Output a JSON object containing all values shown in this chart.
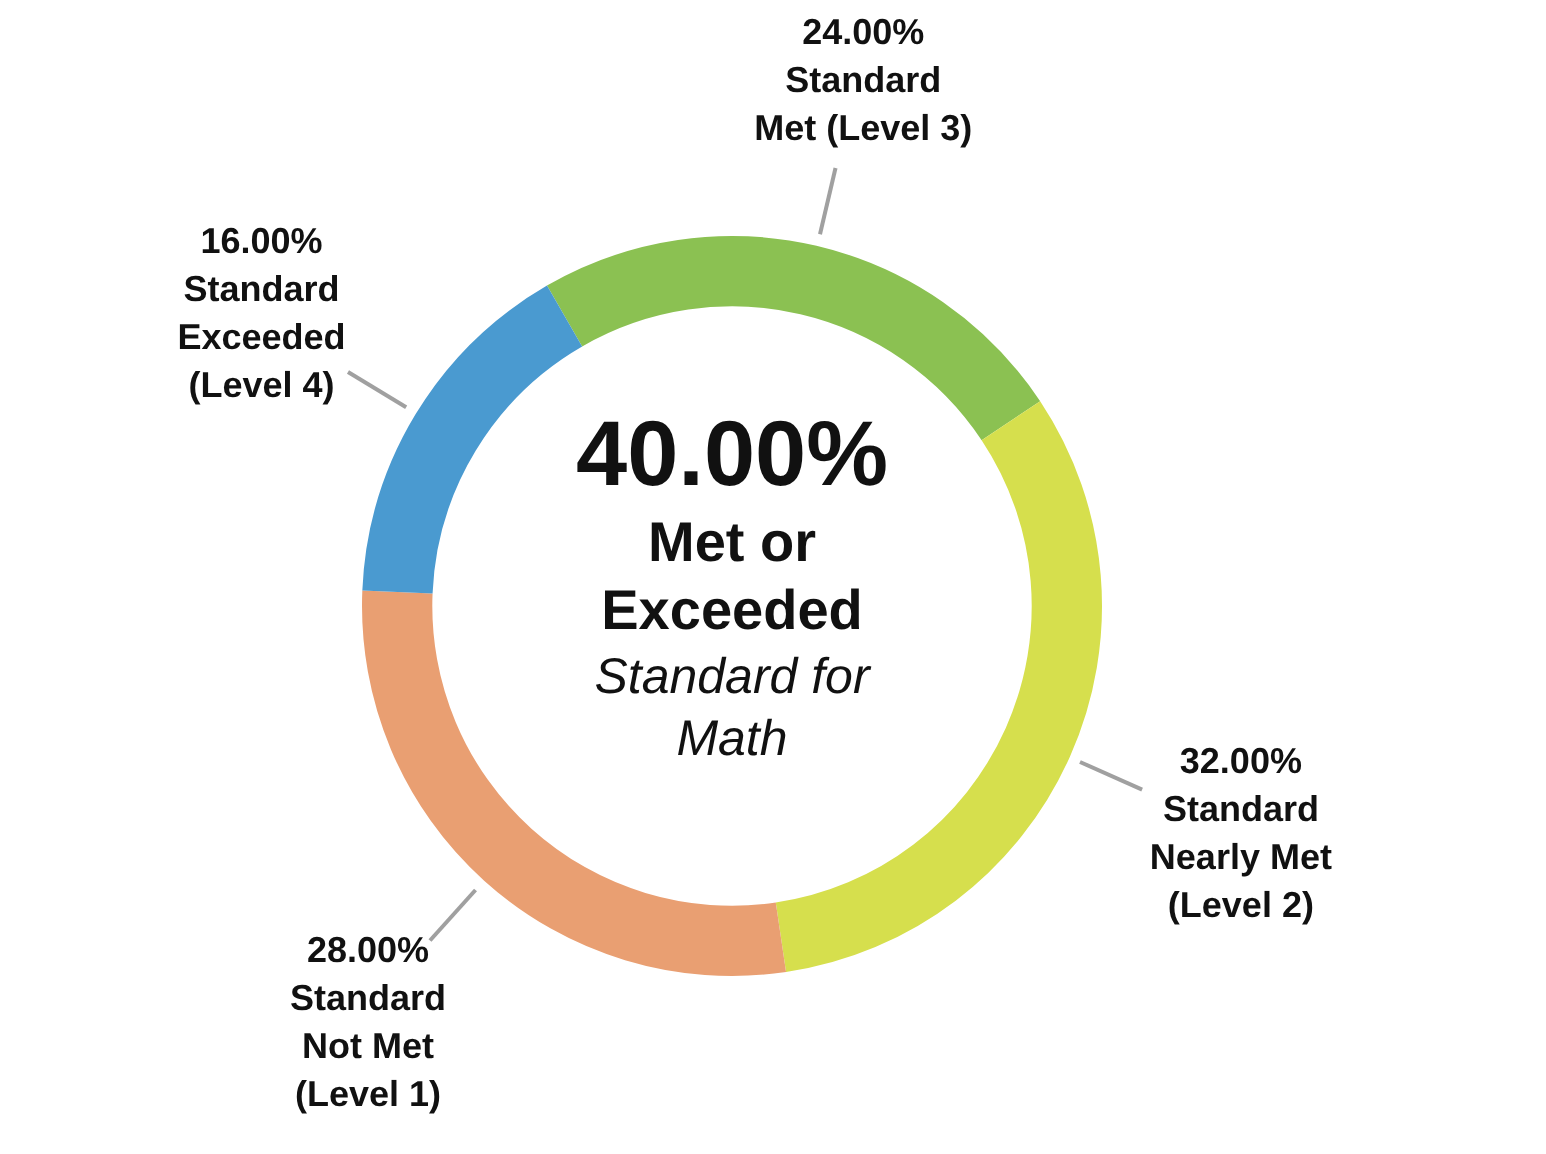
{
  "chart_data": {
    "type": "donut",
    "categories": [
      "Standard Met (Level 3)",
      "Standard Nearly Met (Level 2)",
      "Standard Not Met (Level 1)",
      "Standard Exceeded (Level 4)"
    ],
    "values": [
      24,
      32,
      28,
      16
    ],
    "value_labels": [
      "24.00%",
      "32.00%",
      "28.00%",
      "16.00%"
    ],
    "colors": [
      "#8bc152",
      "#d6df4d",
      "#e99f72",
      "#4a9ad0"
    ],
    "annotations": [
      "40.00%",
      "Met or Exceeded",
      "Standard for Math"
    ],
    "legend": false
  }
}
